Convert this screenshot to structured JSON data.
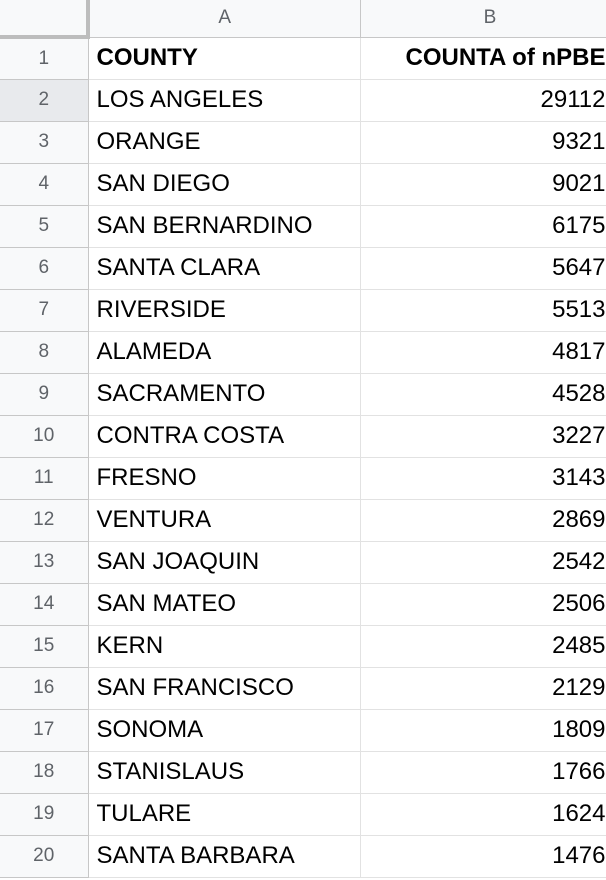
{
  "columns": [
    "A",
    "B"
  ],
  "header": {
    "row_number": "1",
    "county_label": "COUNTY",
    "count_label": "COUNTA of nPBE"
  },
  "rows": [
    {
      "num": "2",
      "county": "LOS ANGELES",
      "count": "29112"
    },
    {
      "num": "3",
      "county": "ORANGE",
      "count": "9321"
    },
    {
      "num": "4",
      "county": "SAN DIEGO",
      "count": "9021"
    },
    {
      "num": "5",
      "county": "SAN BERNARDINO",
      "count": "6175"
    },
    {
      "num": "6",
      "county": "SANTA CLARA",
      "count": "5647"
    },
    {
      "num": "7",
      "county": "RIVERSIDE",
      "count": "5513"
    },
    {
      "num": "8",
      "county": "ALAMEDA",
      "count": "4817"
    },
    {
      "num": "9",
      "county": "SACRAMENTO",
      "count": "4528"
    },
    {
      "num": "10",
      "county": "CONTRA COSTA",
      "count": "3227"
    },
    {
      "num": "11",
      "county": "FRESNO",
      "count": "3143"
    },
    {
      "num": "12",
      "county": "VENTURA",
      "count": "2869"
    },
    {
      "num": "13",
      "county": "SAN JOAQUIN",
      "count": "2542"
    },
    {
      "num": "14",
      "county": "SAN MATEO",
      "count": "2506"
    },
    {
      "num": "15",
      "county": "KERN",
      "count": "2485"
    },
    {
      "num": "16",
      "county": "SAN FRANCISCO",
      "count": "2129"
    },
    {
      "num": "17",
      "county": "SONOMA",
      "count": "1809"
    },
    {
      "num": "18",
      "county": "STANISLAUS",
      "count": "1766"
    },
    {
      "num": "19",
      "county": "TULARE",
      "count": "1624"
    },
    {
      "num": "20",
      "county": "SANTA BARBARA",
      "count": "1476"
    }
  ],
  "active_row": "2"
}
